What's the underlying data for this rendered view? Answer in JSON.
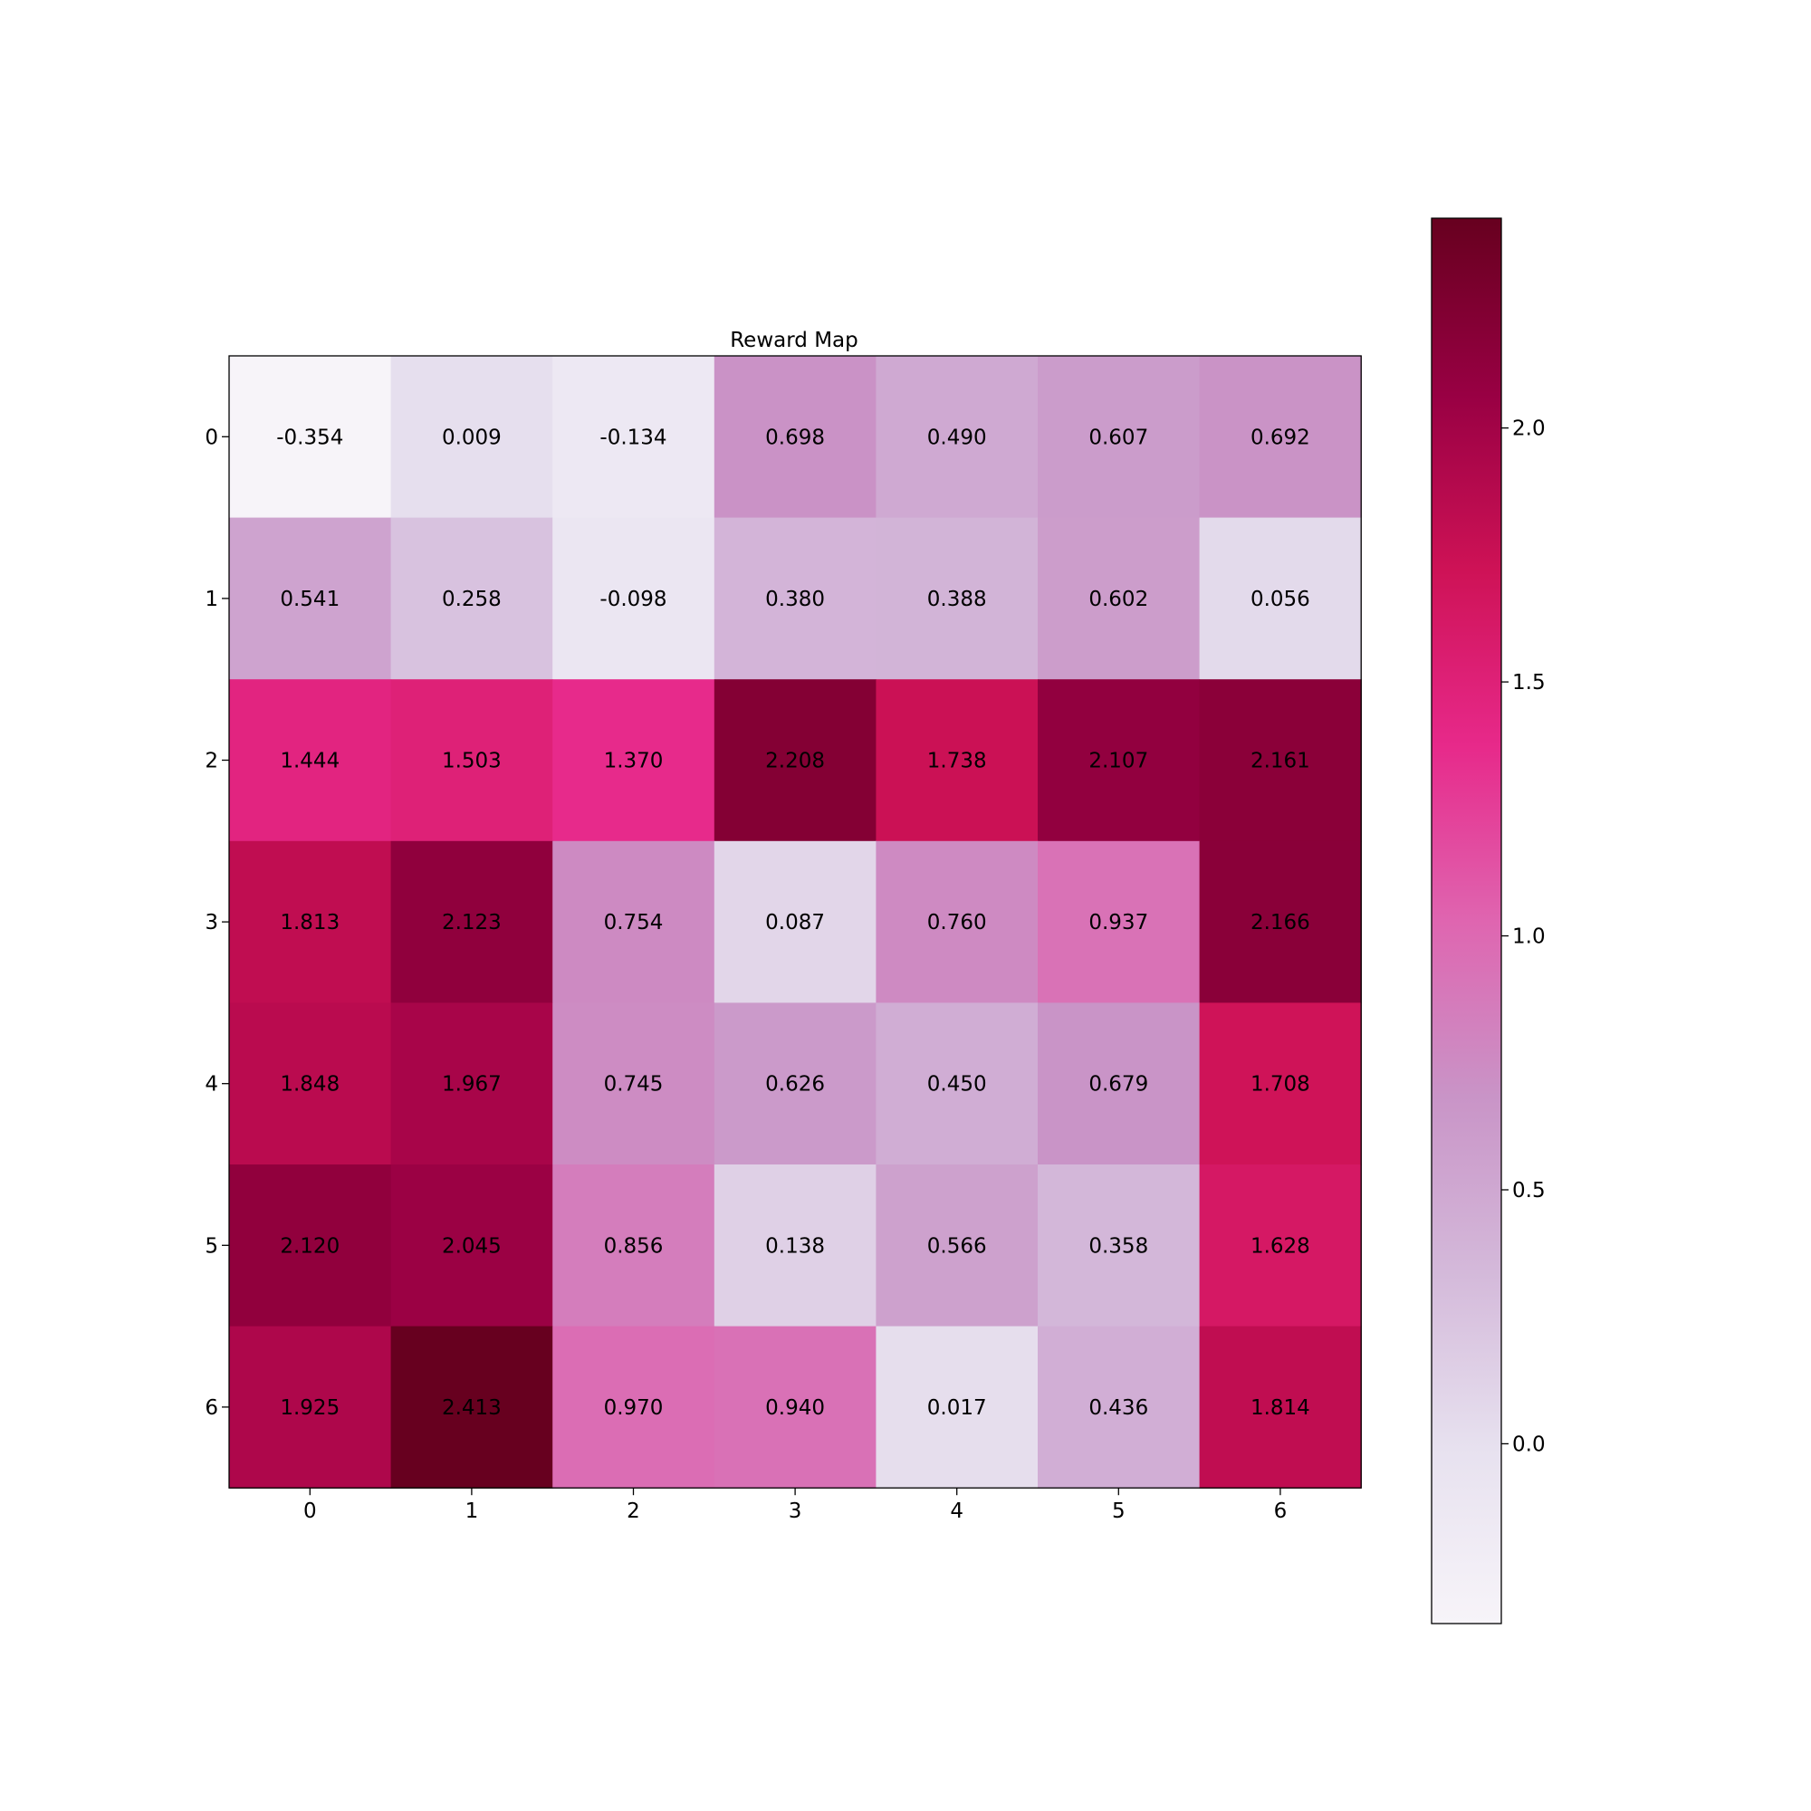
{
  "chart_data": {
    "type": "heatmap",
    "title": "Reward Map",
    "xlabel": "",
    "ylabel": "",
    "x_ticks": [
      "0",
      "1",
      "2",
      "3",
      "4",
      "5",
      "6"
    ],
    "y_ticks": [
      "0",
      "1",
      "2",
      "3",
      "4",
      "5",
      "6"
    ],
    "values": [
      [
        -0.354,
        0.009,
        -0.134,
        0.698,
        0.49,
        0.607,
        0.692
      ],
      [
        0.541,
        0.258,
        -0.098,
        0.38,
        0.388,
        0.602,
        0.056
      ],
      [
        1.444,
        1.503,
        1.37,
        2.208,
        1.738,
        2.107,
        2.161
      ],
      [
        1.813,
        2.123,
        0.754,
        0.087,
        0.76,
        0.937,
        2.166
      ],
      [
        1.848,
        1.967,
        0.745,
        0.626,
        0.45,
        0.679,
        1.708
      ],
      [
        2.12,
        2.045,
        0.856,
        0.138,
        0.566,
        0.358,
        1.628
      ],
      [
        1.925,
        2.413,
        0.97,
        0.94,
        0.017,
        0.436,
        1.814
      ]
    ],
    "cell_labels": [
      [
        "-0.354",
        "0.009",
        "-0.134",
        "0.698",
        "0.490",
        "0.607",
        "0.692"
      ],
      [
        "0.541",
        "0.258",
        "-0.098",
        "0.380",
        "0.388",
        "0.602",
        "0.056"
      ],
      [
        "1.444",
        "1.503",
        "1.370",
        "2.208",
        "1.738",
        "2.107",
        "2.161"
      ],
      [
        "1.813",
        "2.123",
        "0.754",
        "0.087",
        "0.760",
        "0.937",
        "2.166"
      ],
      [
        "1.848",
        "1.967",
        "0.745",
        "0.626",
        "0.450",
        "0.679",
        "1.708"
      ],
      [
        "2.120",
        "2.045",
        "0.856",
        "0.138",
        "0.566",
        "0.358",
        "1.628"
      ],
      [
        "1.925",
        "2.413",
        "0.970",
        "0.940",
        "0.017",
        "0.436",
        "1.814"
      ]
    ],
    "colorbar": {
      "range": [
        -0.354,
        2.413
      ],
      "ticks": [
        0.0,
        0.5,
        1.0,
        1.5,
        2.0
      ],
      "tick_labels": [
        "0.0",
        "0.5",
        "1.0",
        "1.5",
        "2.0"
      ],
      "placement": "right"
    },
    "colormap": [
      "#f7f4f9",
      "#e7e1ef",
      "#d4b9da",
      "#c994c7",
      "#df65b0",
      "#e7298a",
      "#ce1256",
      "#980043",
      "#67001f"
    ],
    "grid": false,
    "legend": "none"
  }
}
